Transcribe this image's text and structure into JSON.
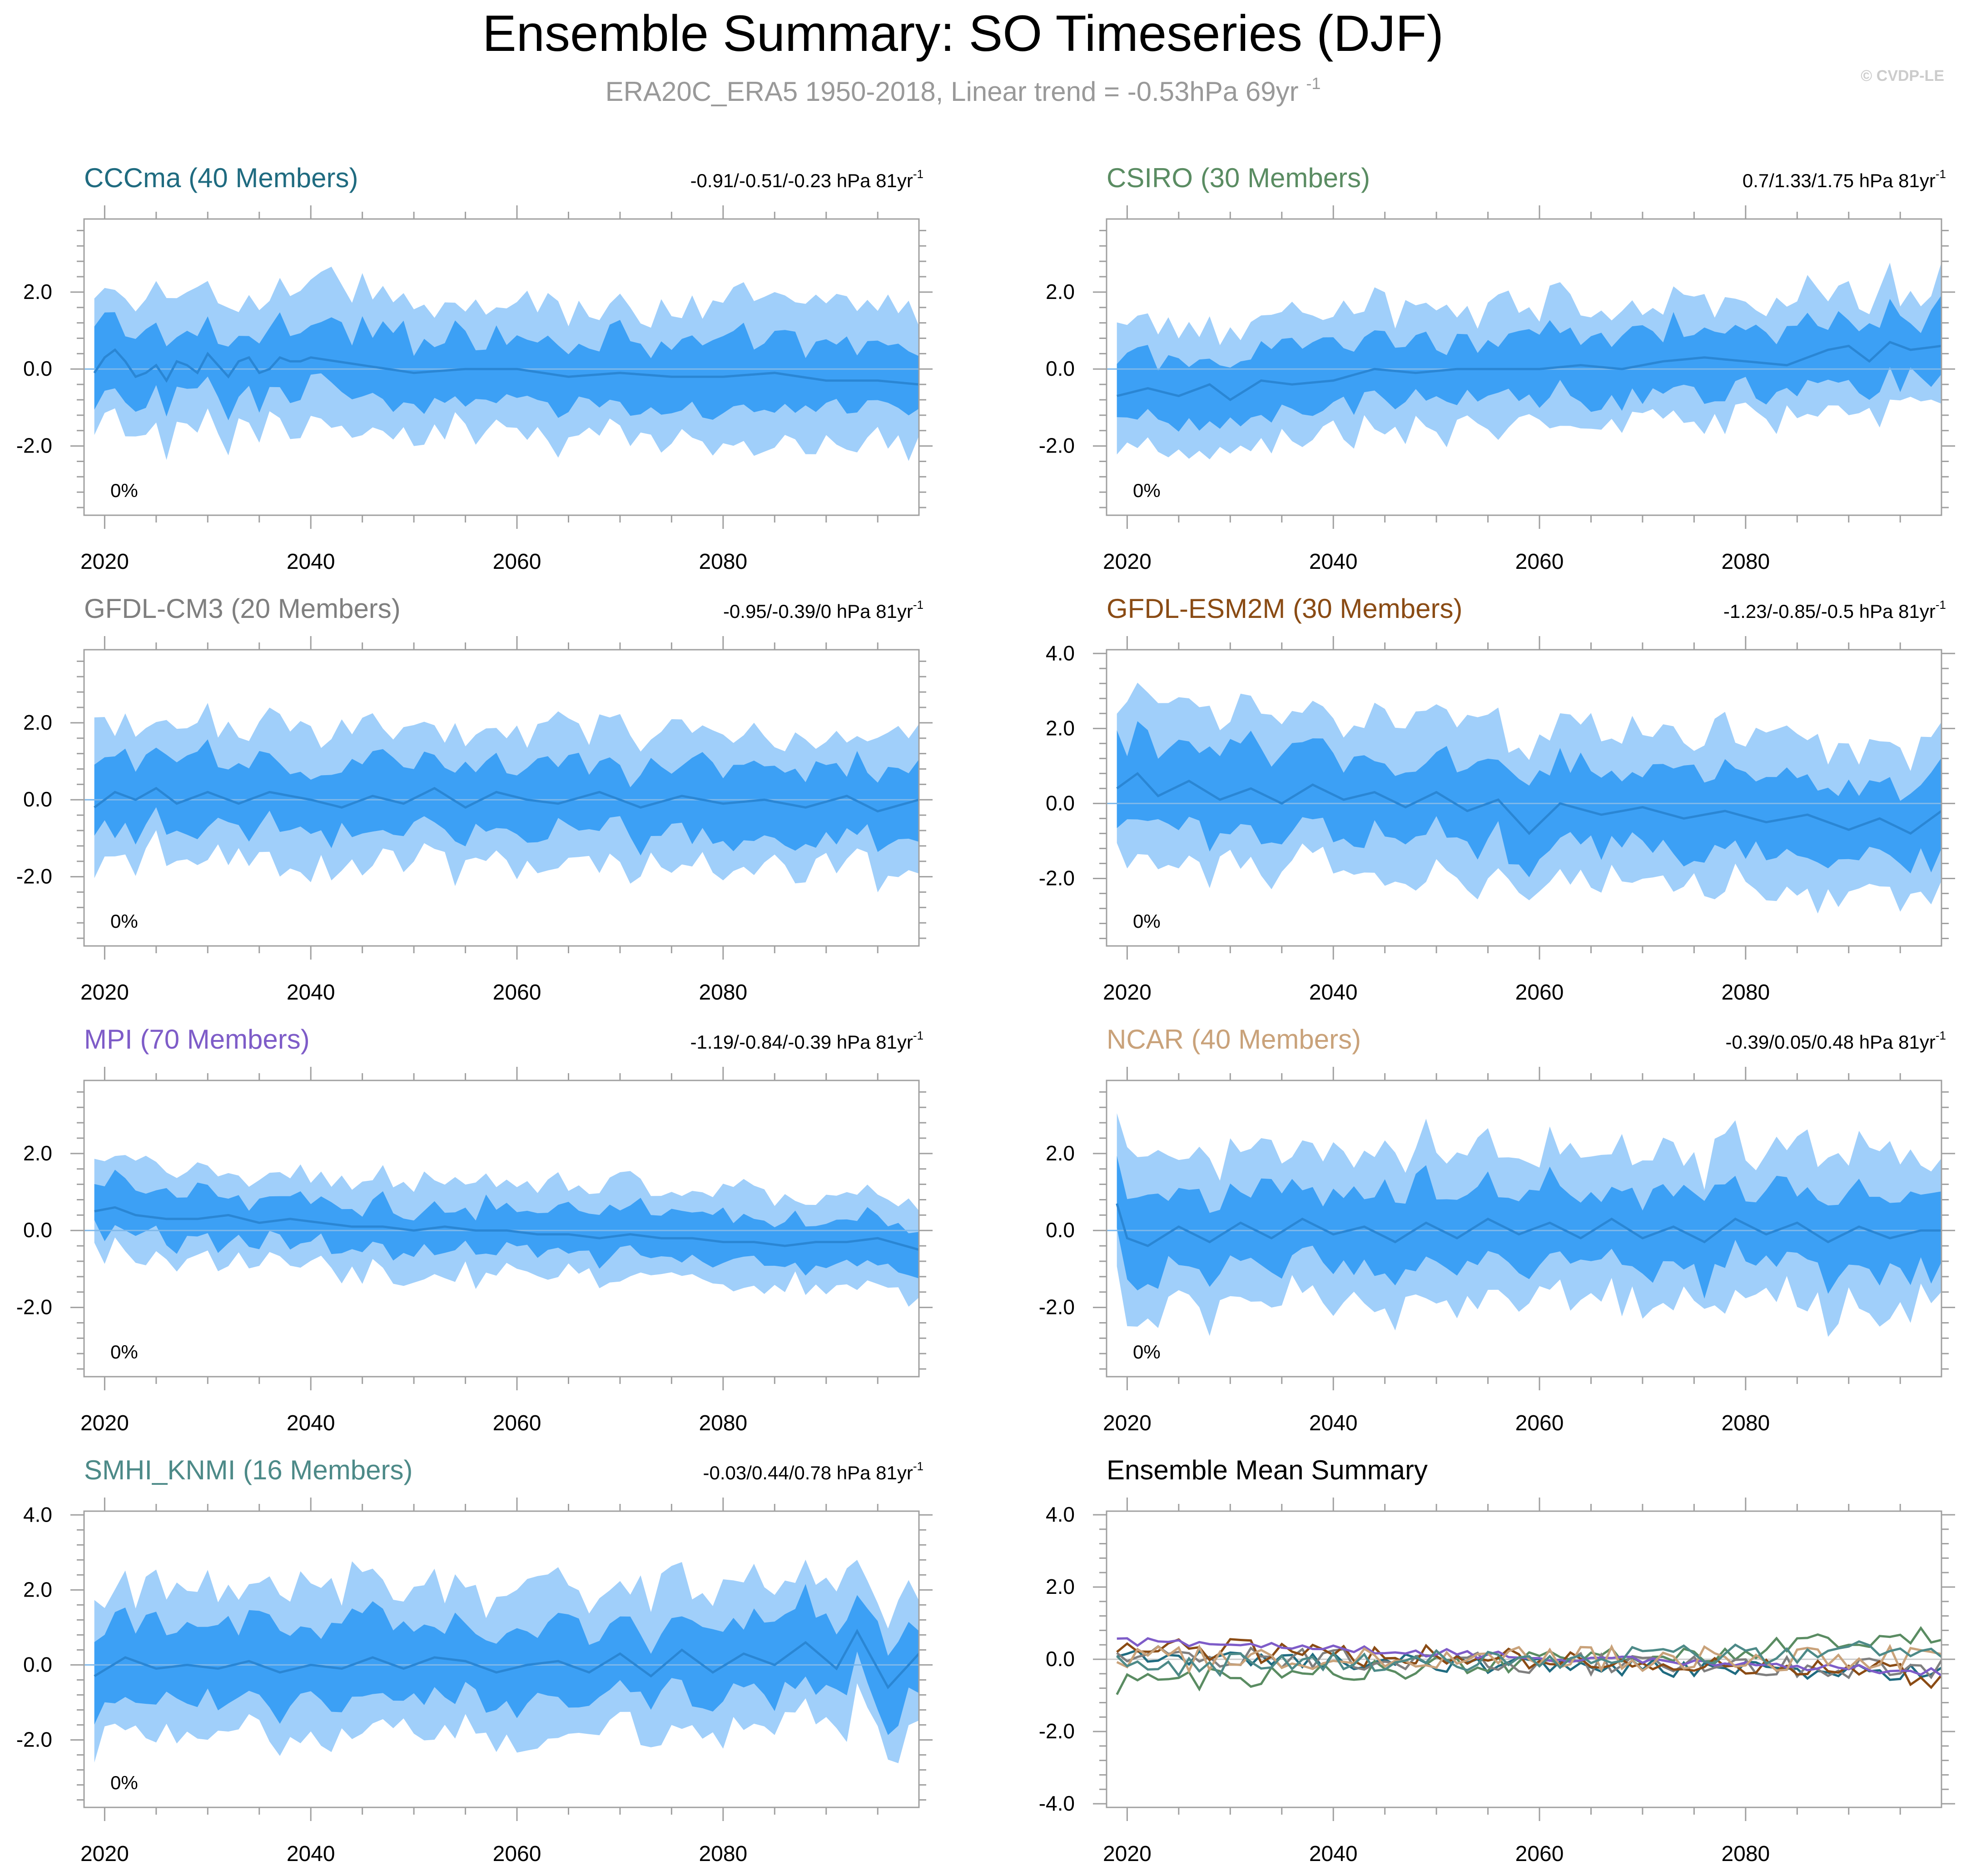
{
  "header": {
    "title": "Ensemble Summary: SO Timeseries (DJF)",
    "subtitle_main": "ERA20C_ERA5 1950-2018, Linear trend = -0.53hPa 69yr",
    "subtitle_sup": "-1",
    "watermark": "© CVDP-LE"
  },
  "colors": {
    "outer_band": "#a0cffa",
    "inner_band": "#3ca0f5",
    "mean_line": "#2a86d4",
    "axis": "#a0a0a0",
    "text": "#000000"
  },
  "chart_data": [
    {
      "type": "area",
      "title": "CCCma (40 Members)",
      "title_color": "#1f6b80",
      "trend_text": "-0.91/-0.51/-0.23 hPa 81yr",
      "trend_sup": "-1",
      "pct_label": "0%",
      "xlim": [
        2018,
        2099
      ],
      "ylim": [
        -3.8,
        3.9
      ],
      "yticks": [
        2.0,
        0.0,
        -2.0
      ],
      "ytick_labels": [
        "2.0",
        "0.0",
        "-2.0"
      ],
      "xticks": [
        2020,
        2040,
        2060,
        2080
      ],
      "xtick_labels": [
        "2020",
        "2040",
        "2060",
        "2080"
      ],
      "x_start": 2019,
      "x_end": 2099,
      "mean_points": [
        [
          2019,
          -0.1
        ],
        [
          2020,
          0.3
        ],
        [
          2021,
          0.5
        ],
        [
          2022,
          0.2
        ],
        [
          2023,
          -0.2
        ],
        [
          2024,
          -0.1
        ],
        [
          2025,
          0.1
        ],
        [
          2026,
          -0.3
        ],
        [
          2027,
          0.2
        ],
        [
          2028,
          0.1
        ],
        [
          2029,
          -0.1
        ],
        [
          2030,
          0.4
        ],
        [
          2031,
          0.1
        ],
        [
          2032,
          -0.2
        ],
        [
          2033,
          0.2
        ],
        [
          2034,
          0.3
        ],
        [
          2035,
          -0.1
        ],
        [
          2036,
          0.0
        ],
        [
          2037,
          0.3
        ],
        [
          2038,
          0.2
        ],
        [
          2039,
          0.2
        ],
        [
          2040,
          0.3
        ],
        [
          2045,
          0.1
        ],
        [
          2050,
          -0.1
        ],
        [
          2055,
          0.0
        ],
        [
          2060,
          0.0
        ],
        [
          2065,
          -0.2
        ],
        [
          2070,
          -0.1
        ],
        [
          2075,
          -0.2
        ],
        [
          2080,
          -0.2
        ],
        [
          2085,
          -0.1
        ],
        [
          2090,
          -0.3
        ],
        [
          2095,
          -0.3
        ],
        [
          2099,
          -0.4
        ]
      ],
      "inner_mean": 0.0,
      "inner_half_width": 0.85,
      "outer_mean": 0.0,
      "outer_half_width": 1.8
    },
    {
      "type": "area",
      "title": "CSIRO (30 Members)",
      "title_color": "#5a8c62",
      "trend_text": "0.7/1.33/1.75 hPa 81yr",
      "trend_sup": "-1",
      "pct_label": "0%",
      "xlim": [
        2018,
        2099
      ],
      "ylim": [
        -3.8,
        3.9
      ],
      "yticks": [
        2.0,
        0.0,
        -2.0
      ],
      "ytick_labels": [
        "2.0",
        "0.0",
        "-2.0"
      ],
      "xticks": [
        2020,
        2040,
        2060,
        2080
      ],
      "xtick_labels": [
        "2020",
        "2040",
        "2060",
        "2080"
      ],
      "x_start": 2019,
      "x_end": 2099,
      "mean_points": [
        [
          2019,
          -0.7
        ],
        [
          2022,
          -0.5
        ],
        [
          2025,
          -0.7
        ],
        [
          2028,
          -0.4
        ],
        [
          2030,
          -0.8
        ],
        [
          2033,
          -0.3
        ],
        [
          2036,
          -0.4
        ],
        [
          2040,
          -0.3
        ],
        [
          2044,
          0.0
        ],
        [
          2048,
          -0.1
        ],
        [
          2052,
          0.0
        ],
        [
          2056,
          0.0
        ],
        [
          2060,
          0.0
        ],
        [
          2064,
          0.1
        ],
        [
          2068,
          0.0
        ],
        [
          2072,
          0.2
        ],
        [
          2076,
          0.3
        ],
        [
          2080,
          0.2
        ],
        [
          2084,
          0.1
        ],
        [
          2088,
          0.5
        ],
        [
          2090,
          0.6
        ],
        [
          2092,
          0.2
        ],
        [
          2094,
          0.7
        ],
        [
          2096,
          0.5
        ],
        [
          2099,
          0.6
        ]
      ],
      "inner_mean": 0.0,
      "inner_half_width": 0.8,
      "outer_mean": 0.0,
      "outer_half_width": 1.6
    },
    {
      "type": "area",
      "title": "GFDL-CM3 (20 Members)",
      "title_color": "#7f7f7f",
      "trend_text": "-0.95/-0.39/0 hPa 81yr",
      "trend_sup": "-1",
      "pct_label": "0%",
      "xlim": [
        2018,
        2099
      ],
      "ylim": [
        -3.8,
        3.9
      ],
      "yticks": [
        2.0,
        0.0,
        -2.0
      ],
      "ytick_labels": [
        "2.0",
        "0.0",
        "-2.0"
      ],
      "xticks": [
        2020,
        2040,
        2060,
        2080
      ],
      "xtick_labels": [
        "2020",
        "2040",
        "2060",
        "2080"
      ],
      "x_start": 2019,
      "x_end": 2099,
      "mean_points": [
        [
          2019,
          -0.2
        ],
        [
          2021,
          0.2
        ],
        [
          2023,
          0.0
        ],
        [
          2025,
          0.3
        ],
        [
          2027,
          -0.1
        ],
        [
          2030,
          0.2
        ],
        [
          2033,
          -0.1
        ],
        [
          2036,
          0.2
        ],
        [
          2040,
          0.0
        ],
        [
          2043,
          -0.2
        ],
        [
          2046,
          0.1
        ],
        [
          2049,
          -0.1
        ],
        [
          2052,
          0.3
        ],
        [
          2055,
          -0.2
        ],
        [
          2058,
          0.2
        ],
        [
          2061,
          0.0
        ],
        [
          2064,
          -0.1
        ],
        [
          2068,
          0.2
        ],
        [
          2072,
          -0.2
        ],
        [
          2076,
          0.1
        ],
        [
          2080,
          -0.1
        ],
        [
          2084,
          0.0
        ],
        [
          2088,
          -0.2
        ],
        [
          2092,
          0.1
        ],
        [
          2095,
          -0.3
        ],
        [
          2099,
          0.0
        ]
      ],
      "inner_mean": -0.1,
      "inner_half_width": 0.9,
      "outer_mean": -0.1,
      "outer_half_width": 1.8
    },
    {
      "type": "area",
      "title": "GFDL-ESM2M (30 Members)",
      "title_color": "#8a4b14",
      "trend_text": "-1.23/-0.85/-0.5 hPa 81yr",
      "trend_sup": "-1",
      "pct_label": "0%",
      "xlim": [
        2018,
        2099
      ],
      "ylim": [
        -3.8,
        4.1
      ],
      "yticks": [
        4.0,
        2.0,
        0.0,
        -2.0
      ],
      "ytick_labels": [
        "4.0",
        "2.0",
        "0.0",
        "-2.0"
      ],
      "xticks": [
        2020,
        2040,
        2060,
        2080
      ],
      "xtick_labels": [
        "2020",
        "2040",
        "2060",
        "2080"
      ],
      "x_start": 2019,
      "x_end": 2099,
      "mean_points": [
        [
          2019,
          0.4
        ],
        [
          2021,
          0.8
        ],
        [
          2023,
          0.2
        ],
        [
          2026,
          0.6
        ],
        [
          2029,
          0.1
        ],
        [
          2032,
          0.4
        ],
        [
          2035,
          0.0
        ],
        [
          2038,
          0.5
        ],
        [
          2041,
          0.1
        ],
        [
          2044,
          0.3
        ],
        [
          2047,
          -0.1
        ],
        [
          2050,
          0.3
        ],
        [
          2053,
          -0.2
        ],
        [
          2056,
          0.1
        ],
        [
          2059,
          -0.8
        ],
        [
          2062,
          0.0
        ],
        [
          2066,
          -0.3
        ],
        [
          2070,
          -0.1
        ],
        [
          2074,
          -0.4
        ],
        [
          2078,
          -0.2
        ],
        [
          2082,
          -0.5
        ],
        [
          2086,
          -0.3
        ],
        [
          2090,
          -0.7
        ],
        [
          2093,
          -0.4
        ],
        [
          2096,
          -0.8
        ],
        [
          2099,
          -0.2
        ]
      ],
      "inner_mean": -0.1,
      "inner_half_width": 1.1,
      "outer_mean": -0.1,
      "outer_half_width": 2.1
    },
    {
      "type": "area",
      "title": "MPI (70 Members)",
      "title_color": "#7e5cc8",
      "trend_text": "-1.19/-0.84/-0.39 hPa 81yr",
      "trend_sup": "-1",
      "pct_label": "0%",
      "xlim": [
        2018,
        2099
      ],
      "ylim": [
        -3.8,
        3.9
      ],
      "yticks": [
        2.0,
        0.0,
        -2.0
      ],
      "ytick_labels": [
        "2.0",
        "0.0",
        "-2.0"
      ],
      "xticks": [
        2020,
        2040,
        2060,
        2080
      ],
      "xtick_labels": [
        "2020",
        "2040",
        "2060",
        "2080"
      ],
      "x_start": 2019,
      "x_end": 2099,
      "mean_points": [
        [
          2019,
          0.5
        ],
        [
          2021,
          0.6
        ],
        [
          2023,
          0.4
        ],
        [
          2026,
          0.3
        ],
        [
          2029,
          0.3
        ],
        [
          2032,
          0.4
        ],
        [
          2035,
          0.2
        ],
        [
          2038,
          0.3
        ],
        [
          2041,
          0.2
        ],
        [
          2044,
          0.1
        ],
        [
          2047,
          0.1
        ],
        [
          2050,
          0.0
        ],
        [
          2053,
          0.1
        ],
        [
          2056,
          0.0
        ],
        [
          2059,
          0.0
        ],
        [
          2062,
          -0.1
        ],
        [
          2065,
          -0.1
        ],
        [
          2068,
          -0.2
        ],
        [
          2071,
          -0.1
        ],
        [
          2074,
          -0.2
        ],
        [
          2077,
          -0.2
        ],
        [
          2080,
          -0.3
        ],
        [
          2083,
          -0.3
        ],
        [
          2086,
          -0.4
        ],
        [
          2089,
          -0.3
        ],
        [
          2092,
          -0.3
        ],
        [
          2095,
          -0.2
        ],
        [
          2099,
          -0.5
        ]
      ],
      "inner_mean": 0.0,
      "inner_half_width": 0.6,
      "outer_mean": 0.0,
      "outer_half_width": 1.2
    },
    {
      "type": "area",
      "title": "NCAR (40 Members)",
      "title_color": "#c9a27a",
      "trend_text": "-0.39/0.05/0.48 hPa 81yr",
      "trend_sup": "-1",
      "pct_label": "0%",
      "xlim": [
        2018,
        2099
      ],
      "ylim": [
        -3.8,
        3.9
      ],
      "yticks": [
        2.0,
        0.0,
        -2.0
      ],
      "ytick_labels": [
        "2.0",
        "0.0",
        "-2.0"
      ],
      "xticks": [
        2020,
        2040,
        2060,
        2080
      ],
      "xtick_labels": [
        "2020",
        "2040",
        "2060",
        "2080"
      ],
      "x_start": 2019,
      "x_end": 2099,
      "mean_points": [
        [
          2019,
          0.7
        ],
        [
          2020,
          -0.2
        ],
        [
          2022,
          -0.4
        ],
        [
          2025,
          0.1
        ],
        [
          2028,
          -0.3
        ],
        [
          2031,
          0.2
        ],
        [
          2034,
          -0.2
        ],
        [
          2037,
          0.3
        ],
        [
          2040,
          -0.1
        ],
        [
          2043,
          0.1
        ],
        [
          2046,
          -0.3
        ],
        [
          2049,
          0.2
        ],
        [
          2052,
          -0.2
        ],
        [
          2055,
          0.3
        ],
        [
          2058,
          -0.1
        ],
        [
          2061,
          0.2
        ],
        [
          2064,
          -0.2
        ],
        [
          2067,
          0.3
        ],
        [
          2070,
          -0.2
        ],
        [
          2073,
          0.1
        ],
        [
          2076,
          -0.3
        ],
        [
          2079,
          0.3
        ],
        [
          2082,
          -0.1
        ],
        [
          2085,
          0.2
        ],
        [
          2088,
          -0.3
        ],
        [
          2091,
          0.1
        ],
        [
          2094,
          -0.2
        ],
        [
          2097,
          0.0
        ],
        [
          2099,
          0.0
        ]
      ],
      "inner_mean": -0.1,
      "inner_half_width": 1.0,
      "outer_mean": -0.1,
      "outer_half_width": 2.0
    },
    {
      "type": "area",
      "title": "SMHI_KNMI (16 Members)",
      "title_color": "#4d8a88",
      "trend_text": "-0.03/0.44/0.78 hPa 81yr",
      "trend_sup": "-1",
      "pct_label": "0%",
      "xlim": [
        2018,
        2099
      ],
      "ylim": [
        -3.8,
        4.1
      ],
      "yticks": [
        4.0,
        2.0,
        0.0,
        -2.0
      ],
      "ytick_labels": [
        "4.0",
        "2.0",
        "0.0",
        "-2.0"
      ],
      "xticks": [
        2020,
        2040,
        2060,
        2080
      ],
      "xtick_labels": [
        "2020",
        "2040",
        "2060",
        "2080"
      ],
      "x_start": 2019,
      "x_end": 2099,
      "mean_points": [
        [
          2019,
          -0.3
        ],
        [
          2022,
          0.2
        ],
        [
          2025,
          -0.1
        ],
        [
          2028,
          0.0
        ],
        [
          2031,
          -0.1
        ],
        [
          2034,
          0.1
        ],
        [
          2037,
          -0.2
        ],
        [
          2040,
          0.0
        ],
        [
          2043,
          -0.1
        ],
        [
          2046,
          0.2
        ],
        [
          2049,
          -0.1
        ],
        [
          2052,
          0.2
        ],
        [
          2055,
          0.1
        ],
        [
          2058,
          -0.2
        ],
        [
          2061,
          0.0
        ],
        [
          2064,
          0.1
        ],
        [
          2067,
          -0.2
        ],
        [
          2070,
          0.3
        ],
        [
          2073,
          -0.3
        ],
        [
          2076,
          0.4
        ],
        [
          2079,
          -0.2
        ],
        [
          2082,
          0.3
        ],
        [
          2085,
          0.0
        ],
        [
          2088,
          0.6
        ],
        [
          2091,
          -0.1
        ],
        [
          2093,
          0.9
        ],
        [
          2096,
          -0.6
        ],
        [
          2099,
          0.3
        ]
      ],
      "inner_mean": 0.0,
      "inner_half_width": 1.0,
      "outer_mean": 0.0,
      "outer_half_width": 2.0
    },
    {
      "type": "line",
      "title": "Ensemble Mean Summary",
      "title_color": "#000000",
      "xlim": [
        2018,
        2099
      ],
      "ylim": [
        -4.1,
        4.1
      ],
      "yticks": [
        4.0,
        2.0,
        0.0,
        -2.0,
        -4.0
      ],
      "ytick_labels": [
        "4.0",
        "2.0",
        "0.0",
        "-2.0",
        "-4.0"
      ],
      "xticks": [
        2020,
        2040,
        2060,
        2080
      ],
      "xtick_labels": [
        "2020",
        "2040",
        "2060",
        "2080"
      ],
      "x_start": 2019,
      "x_end": 2099,
      "series": [
        {
          "name": "CCCma",
          "color": "#1f6b80",
          "base": 0.1,
          "slope": -0.5,
          "amp": 0.25
        },
        {
          "name": "CSIRO",
          "color": "#5a8c62",
          "base": -0.7,
          "slope": 1.3,
          "amp": 0.3
        },
        {
          "name": "GFDL-CM3",
          "color": "#7f7f7f",
          "base": 0.1,
          "slope": -0.4,
          "amp": 0.3
        },
        {
          "name": "GFDL-ESM2M",
          "color": "#8a4b14",
          "base": 0.4,
          "slope": -0.85,
          "amp": 0.35
        },
        {
          "name": "MPI",
          "color": "#7e5cc8",
          "base": 0.5,
          "slope": -0.85,
          "amp": 0.12
        },
        {
          "name": "NCAR",
          "color": "#c9a27a",
          "base": 0.0,
          "slope": 0.05,
          "amp": 0.35
        },
        {
          "name": "SMHI_KNMI",
          "color": "#4d8a88",
          "base": -0.2,
          "slope": 0.45,
          "amp": 0.3
        }
      ]
    }
  ]
}
